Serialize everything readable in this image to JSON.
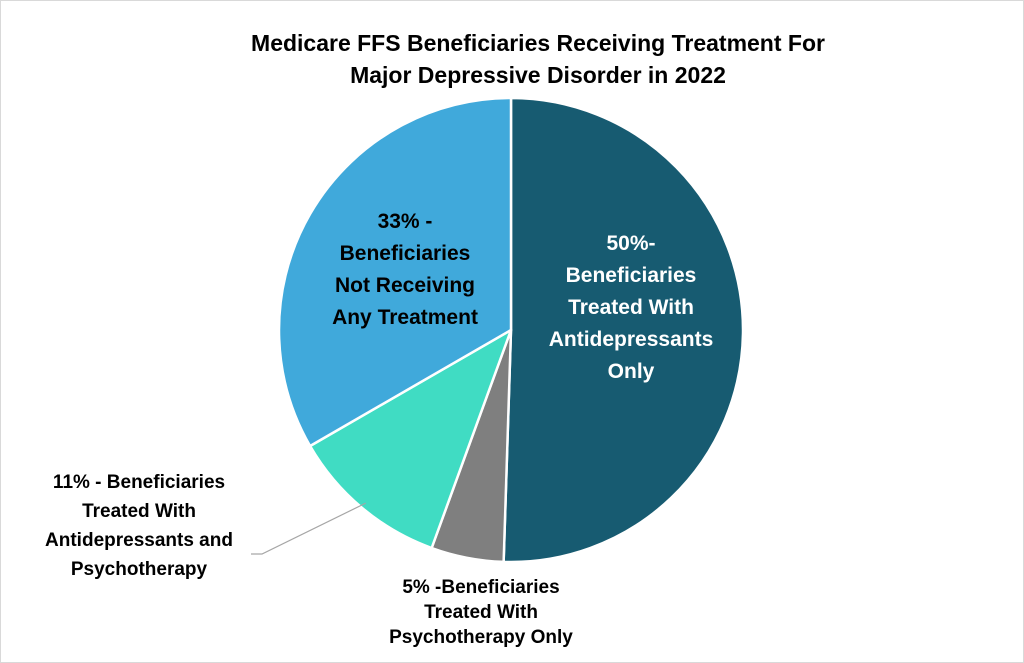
{
  "chart_data": {
    "type": "pie",
    "title": "Medicare FFS Beneficiaries Receiving Treatment For Major Depressive Disorder in 2022",
    "title_lines": [
      "Medicare FFS Beneficiaries Receiving Treatment For",
      "Major Depressive Disorder in 2022"
    ],
    "start": "12 o'clock",
    "direction": "clockwise",
    "slices": [
      {
        "value": 50,
        "color": "#175B71",
        "label_lines": [
          "50%-",
          "Beneficiaries",
          "Treated With",
          "Antidepressants",
          "Only"
        ],
        "label_color": "#ffffff"
      },
      {
        "value": 5,
        "color": "#7F7F7F",
        "label_lines": [
          "5% -Beneficiaries",
          "Treated With",
          "Psychotherapy Only"
        ],
        "label_color": "#000000"
      },
      {
        "value": 11,
        "color": "#40DCC3",
        "label_lines": [
          "11% - Beneficiaries",
          "Treated With",
          "Antidepressants and",
          "Psychotherapy"
        ],
        "label_color": "#000000"
      },
      {
        "value": 33,
        "color": "#40A9DB",
        "label_lines": [
          "33% -",
          "Beneficiaries",
          "Not Receiving",
          "Any Treatment"
        ],
        "label_color": "#000000"
      }
    ]
  }
}
